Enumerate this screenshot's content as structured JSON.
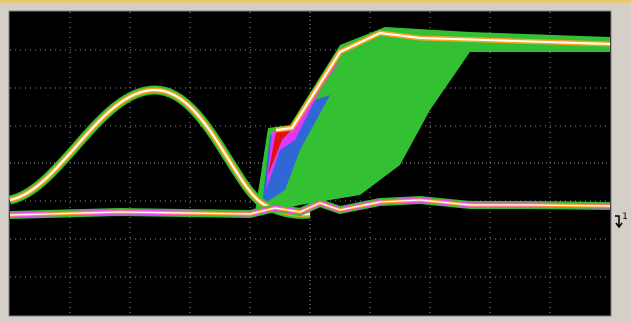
{
  "screen": {
    "channel_marker": "1"
  }
}
